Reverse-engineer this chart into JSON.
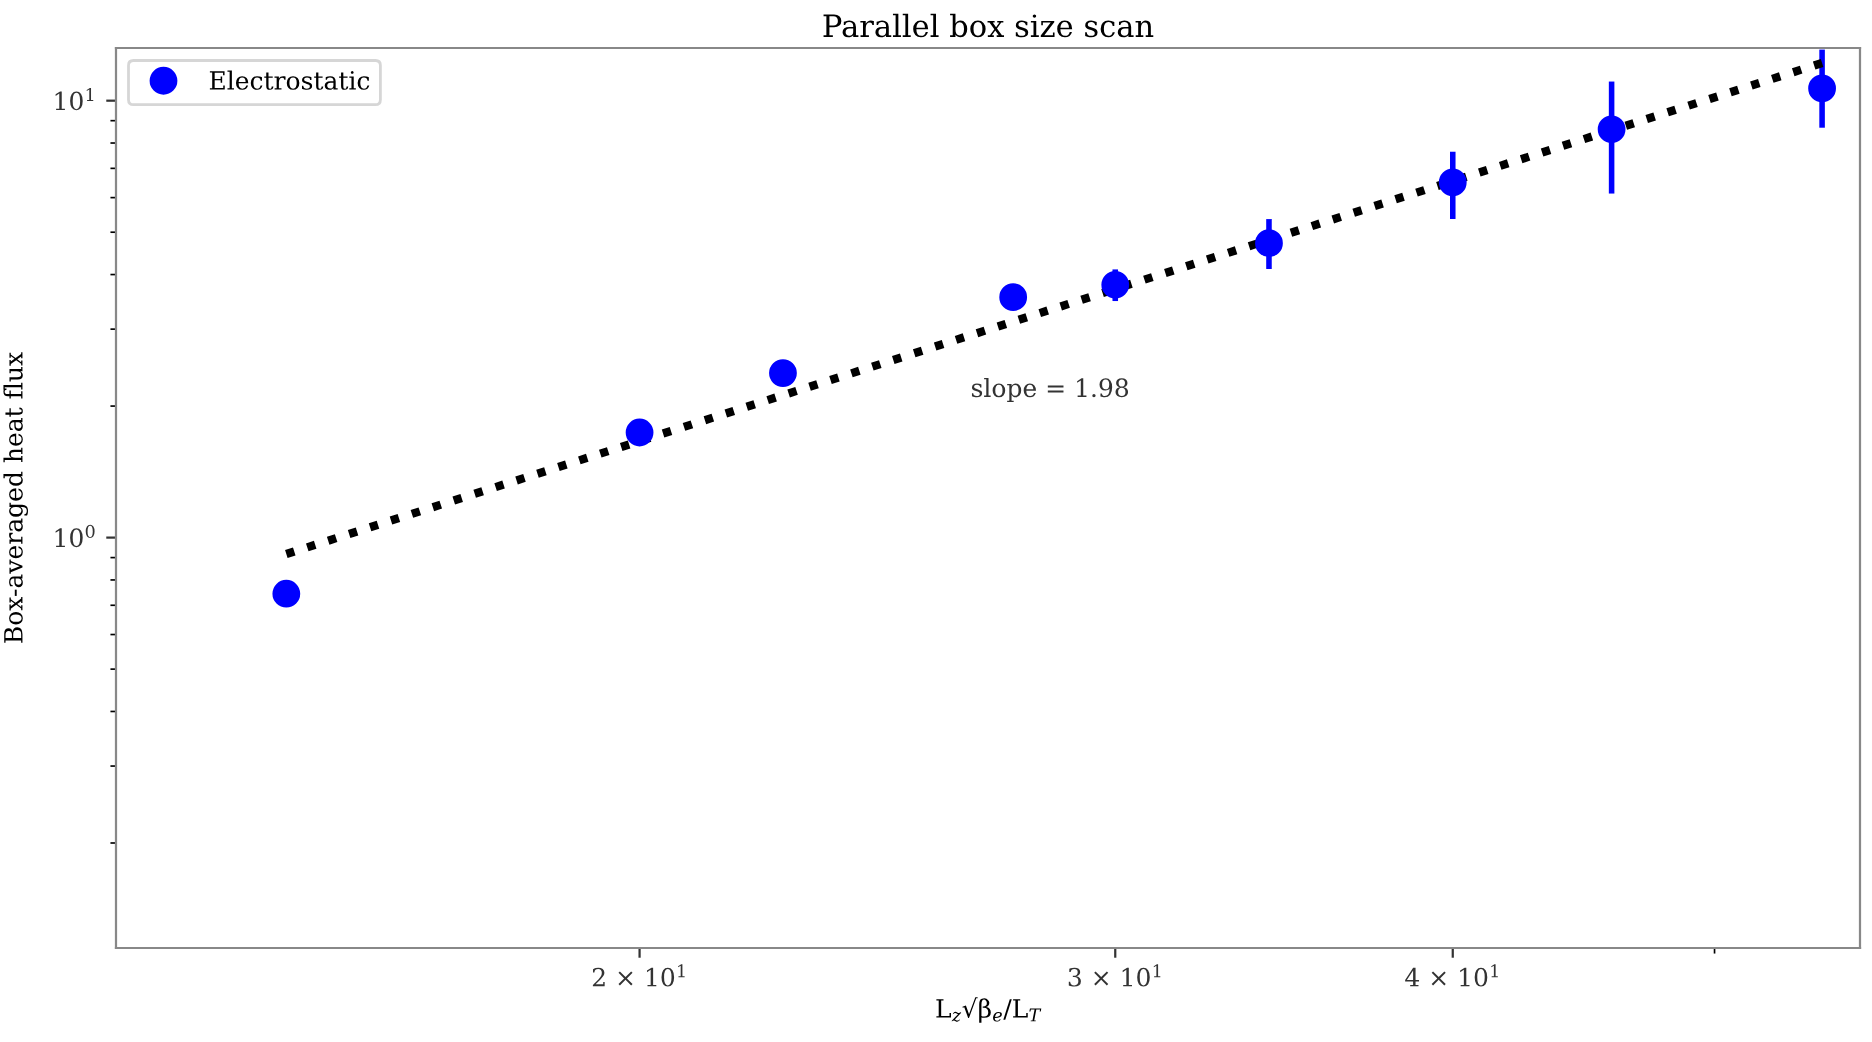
{
  "chart_data": {
    "type": "scatter",
    "title": "Parallel box size scan",
    "xlabel": "L$_{z}$√β$_{e}$/L$_{T}$",
    "ylabel": "Box-averaged heat flux",
    "log": "xy",
    "xlim": [
      12.8,
      56.6
    ],
    "ylim": [
      0.115,
      13.2
    ],
    "xticks": [
      {
        "value": 20,
        "label": "2 × 10$^{1}$"
      },
      {
        "value": 30,
        "label": "3 × 10$^{1}$"
      },
      {
        "value": 40,
        "label": "4 × 10$^{1}$"
      }
    ],
    "yticks": [
      {
        "value": 1,
        "label": "10$^{0}$"
      },
      {
        "value": 10,
        "label": "10$^{1}$"
      }
    ],
    "grid": false,
    "legend": "top left",
    "marker": "circle",
    "series": [
      {
        "name": "Electrostatic",
        "color": "#0000ff",
        "x": [
          14.8,
          20.0,
          22.6,
          27.5,
          30.0,
          34.2,
          40.0,
          45.8,
          54.8
        ],
        "values": [
          0.744,
          1.74,
          2.38,
          3.55,
          3.79,
          4.72,
          6.5,
          8.6,
          10.67
        ],
        "errors": [
          null,
          null,
          null,
          null,
          [
            3.53,
            4.05
          ],
          [
            4.18,
            5.28
          ],
          [
            5.44,
            7.53
          ],
          [
            6.22,
            10.9
          ],
          [
            8.8,
            12.9
          ]
        ]
      },
      {
        "type": "line",
        "marker": "none",
        "color": "#000000",
        "line_style": "dotted",
        "x": [
          14.8,
          54.8
        ],
        "values": [
          0.917,
          12.2
        ]
      }
    ],
    "annotations": [
      "slope = 1.98"
    ]
  }
}
